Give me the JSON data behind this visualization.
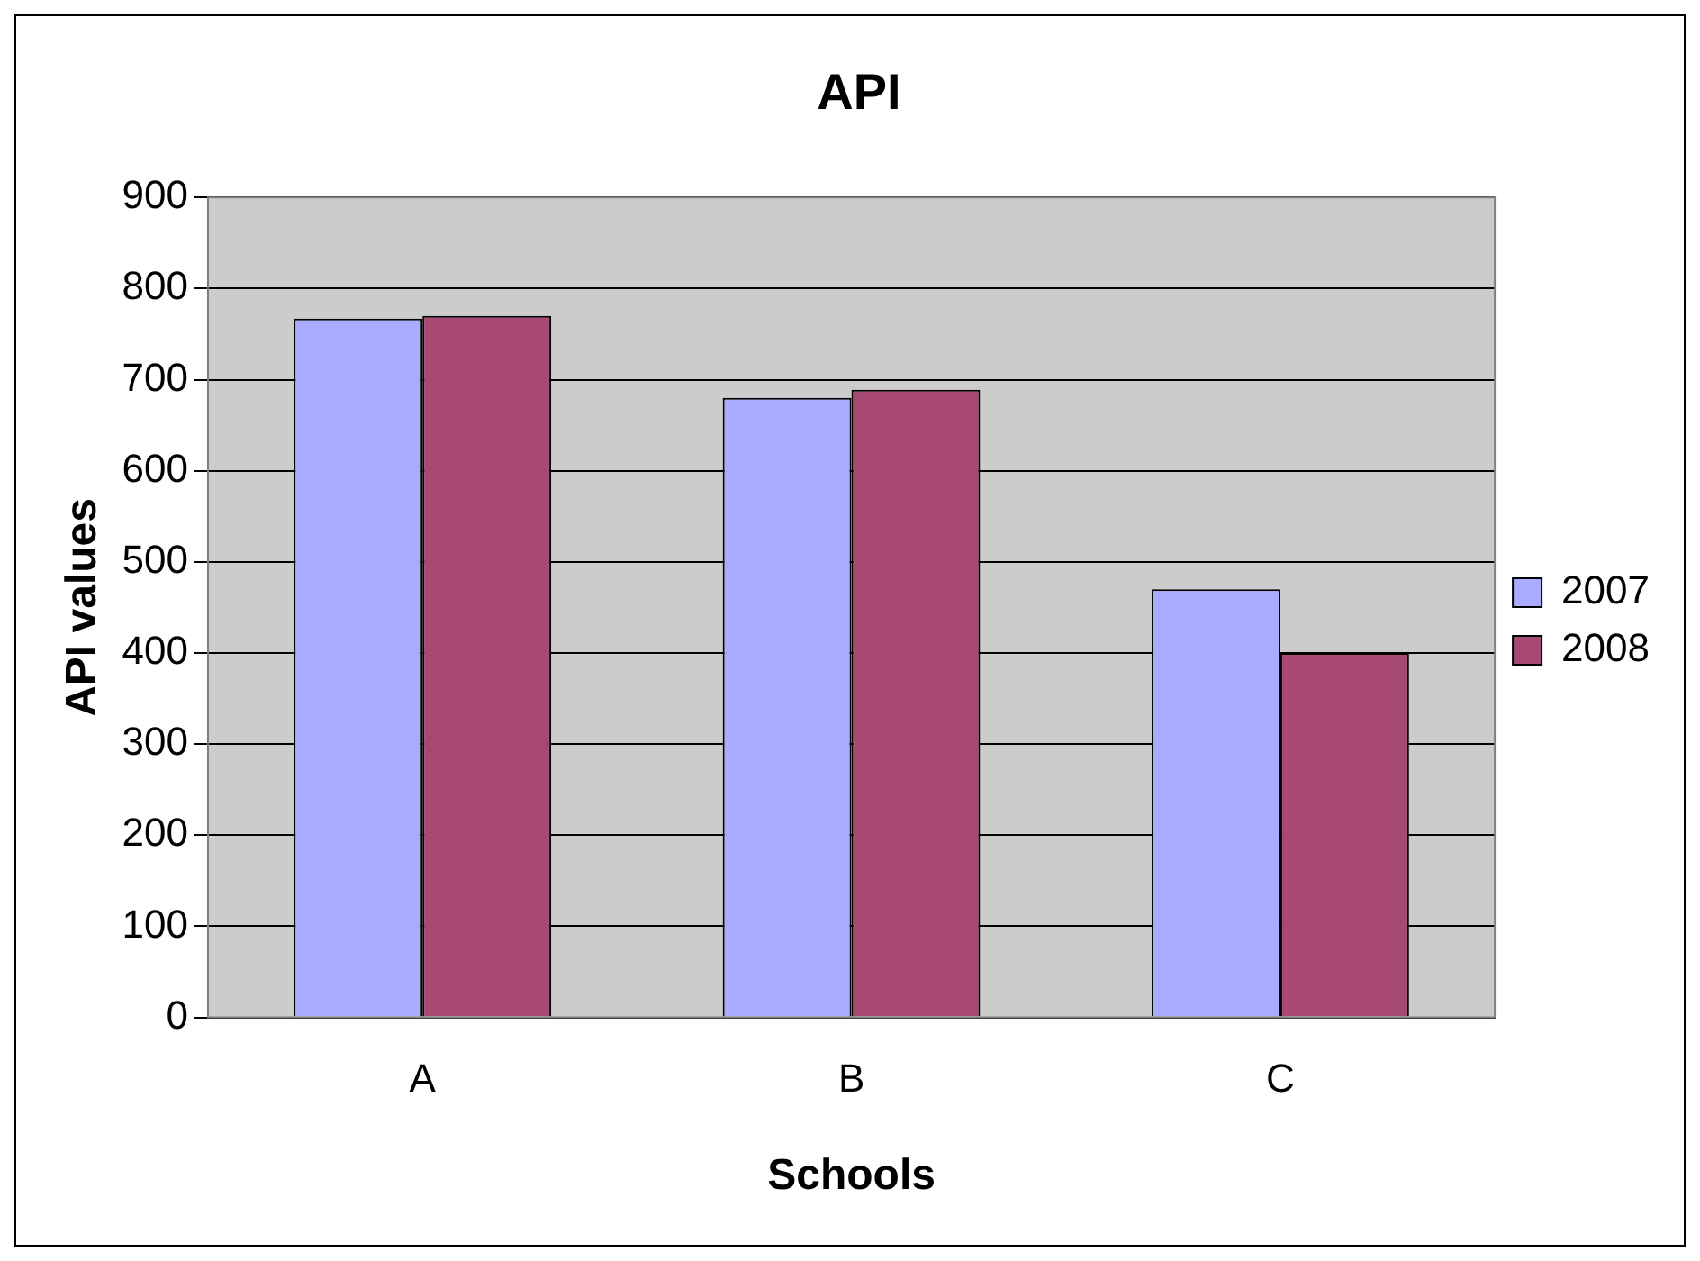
{
  "chart_data": {
    "type": "bar",
    "title": "API",
    "xlabel": "Schools",
    "ylabel": "API values",
    "categories": [
      "A",
      "B",
      "C"
    ],
    "series": [
      {
        "name": "2007",
        "color": "#a9abff",
        "values": [
          767,
          680,
          470
        ]
      },
      {
        "name": "2008",
        "color": "#a84874",
        "values": [
          770,
          689,
          400
        ]
      }
    ],
    "ylim": [
      0,
      900
    ],
    "yticks": [
      0,
      100,
      200,
      300,
      400,
      500,
      600,
      700,
      800,
      900
    ],
    "grid": "y",
    "legend": "right"
  }
}
